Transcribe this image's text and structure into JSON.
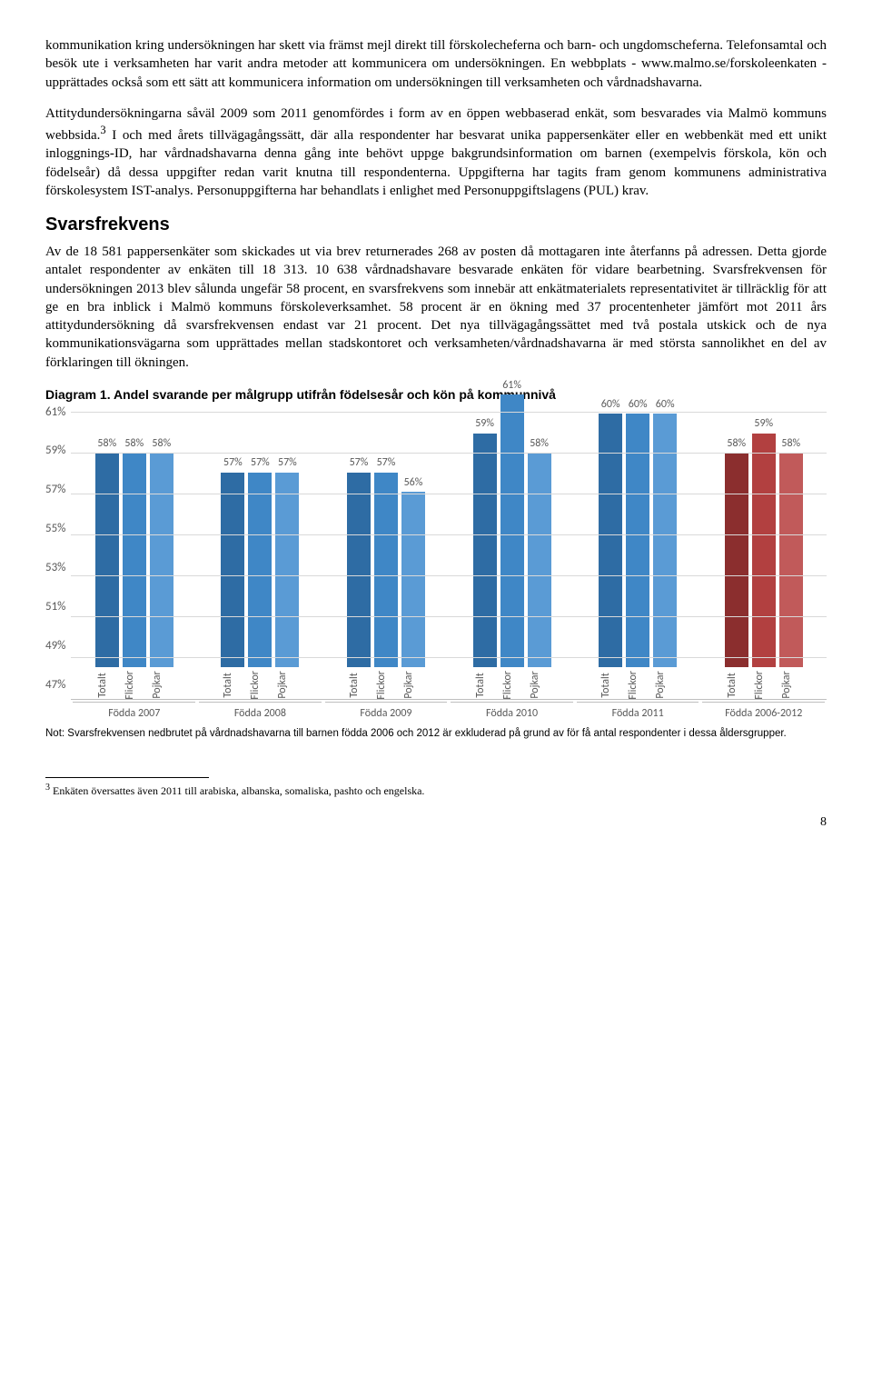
{
  "para1": "kommunikation kring undersökningen har skett via främst mejl direkt till förskolecheferna och barn- och ungdomscheferna. Telefonsamtal och besök ute i verksamheten har varit andra metoder att kommunicera om undersökningen. En webbplats - www.malmo.se/forskoleenkaten - upprättades också som ett sätt att kommunicera information om undersökningen till verksamheten och vårdnadshavarna.",
  "para2_a": "Attitydundersökningarna såväl 2009 som 2011 genomfördes i form av en öppen webbaserad enkät, som besvarades via Malmö kommuns webbsida.",
  "para2_sup": "3",
  "para2_b": " I och med årets tillvägagångssätt, där alla respondenter har besvarat unika pappersenkäter eller en webbenkät med ett unikt inloggnings-ID, har vårdnadshavarna denna gång inte behövt uppge bakgrundsinformation om barnen (exempelvis förskola, kön och födelseår) då dessa uppgifter redan varit knutna till respondenterna. Uppgifterna har tagits fram genom kommunens administrativa förskolesystem IST-analys. Personuppgifterna har behandlats i enlighet med Personuppgiftslagens (PUL) krav.",
  "h2": "Svarsfrekvens",
  "para3": "Av de 18 581 pappersenkäter som skickades ut via brev returnerades 268 av posten då mottagaren inte återfanns på adressen. Detta gjorde antalet respondenter av enkäten till 18 313. 10 638 vårdnadshavare besvarade enkäten för vidare bearbetning. Svarsfrekvensen för undersökningen 2013 blev sålunda ungefär 58 procent, en svarsfrekvens som innebär att enkätmaterialets representativitet är tillräcklig för att ge en bra inblick i Malmö kommuns förskoleverksamhet. 58 procent är en ökning med 37 procentenheter jämfört mot 2011 års attitydundersökning då svarsfrekvensen endast var 21 procent. Det nya tillvägagångssättet med två postala utskick och de nya kommunikationsvägarna som upprättades mellan stadskontoret och verksamheten/vårdnadshavarna är med största sannolikhet en del av förklaringen till ökningen.",
  "chart": {
    "title": "Diagram 1. Andel svarande per målgrupp utifrån födelsesår och kön på kommunnivå",
    "ymin": 47,
    "ymax": 61,
    "ystep": 2,
    "yticks": [
      "47%",
      "49%",
      "51%",
      "53%",
      "55%",
      "57%",
      "59%",
      "61%"
    ],
    "series_labels": [
      "Totalt",
      "Flickor",
      "Pojkar"
    ],
    "colors_blue": [
      "#2e6ca4",
      "#3f87c6",
      "#5a9bd5"
    ],
    "colors_red": [
      "#8b2e2e",
      "#b24040",
      "#c15a5a"
    ],
    "groups": [
      {
        "label": "Födda 2007",
        "values": [
          58,
          58,
          58
        ],
        "palette": "blue"
      },
      {
        "label": "Födda 2008",
        "values": [
          57,
          57,
          57
        ],
        "palette": "blue"
      },
      {
        "label": "Födda 2009",
        "values": [
          57,
          57,
          56
        ],
        "palette": "blue"
      },
      {
        "label": "Födda 2010",
        "values": [
          59,
          61,
          58
        ],
        "palette": "blue"
      },
      {
        "label": "Födda 2011",
        "values": [
          60,
          60,
          60
        ],
        "palette": "blue"
      },
      {
        "label": "Födda 2006-2012",
        "values": [
          58,
          59,
          58
        ],
        "palette": "red"
      }
    ]
  },
  "note_label": "Not:",
  "note": " Svarsfrekvensen nedbrutet på vårdnadshavarna till barnen födda 2006 och 2012 är exkluderad på grund av för få antal respondenter i dessa åldersgrupper.",
  "footnote_sup": "3",
  "footnote": " Enkäten översattes även 2011 till arabiska, albanska, somaliska, pashto och engelska.",
  "page": "8"
}
